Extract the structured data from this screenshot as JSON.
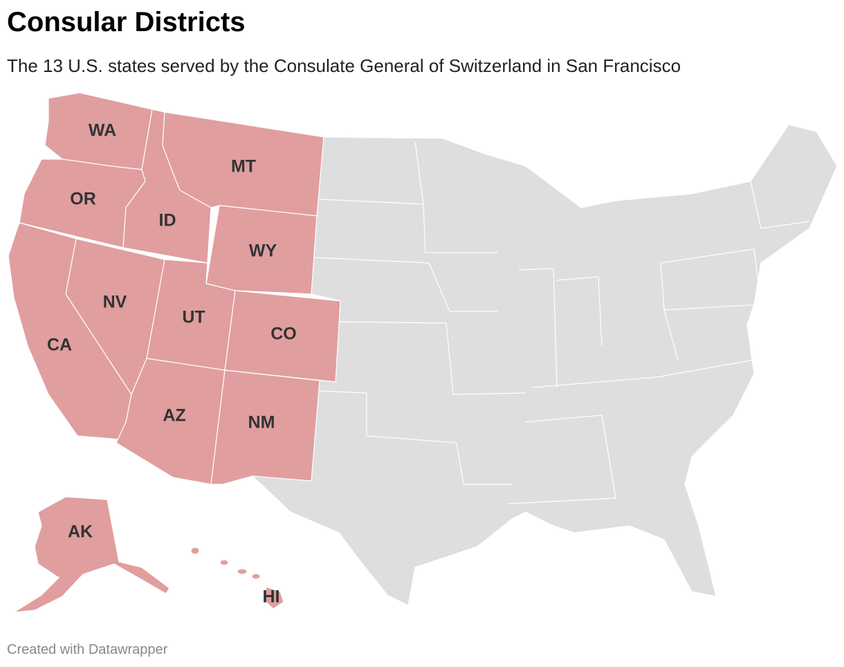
{
  "header": {
    "title": "Consular Districts",
    "subtitle": "The 13 U.S. states served by the Consulate General of Switzerland in San Francisco"
  },
  "states": [
    "WA",
    "OR",
    "ID",
    "MT",
    "WY",
    "NV",
    "CA",
    "UT",
    "CO",
    "AZ",
    "NM",
    "AK",
    "HI"
  ],
  "footer": "Created with Datawrapper"
}
